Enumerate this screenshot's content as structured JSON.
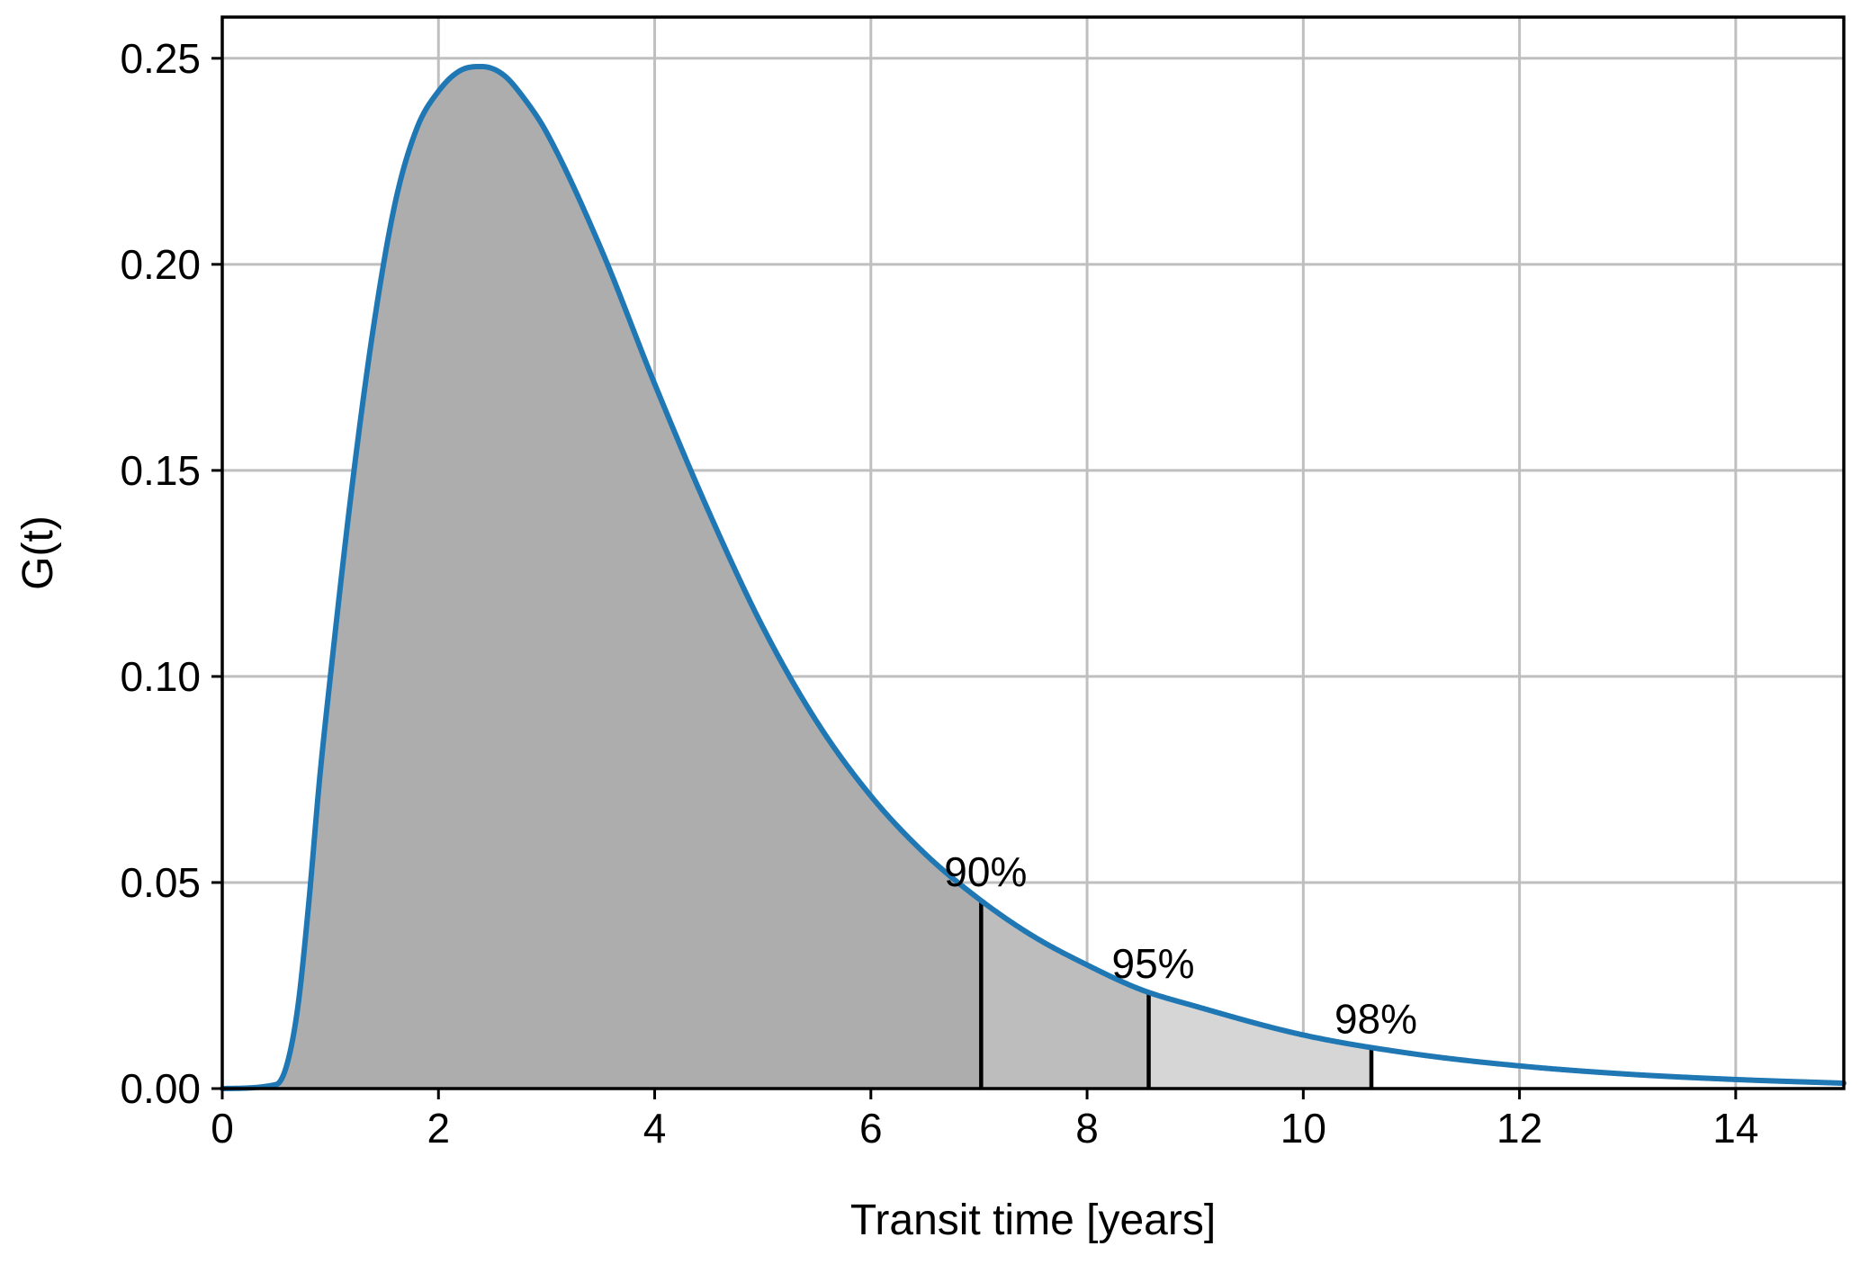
{
  "chart_data": {
    "type": "area",
    "xlabel": "Transit time [years]",
    "ylabel": "G(t)",
    "xlim": [
      0,
      15
    ],
    "ylim": [
      0,
      0.26
    ],
    "grid": true,
    "x_ticks": [
      0,
      2,
      4,
      6,
      8,
      10,
      12,
      14
    ],
    "x_tick_labels": [
      "0",
      "2",
      "4",
      "6",
      "8",
      "10",
      "12",
      "14"
    ],
    "y_ticks": [
      0,
      0.05,
      0.1,
      0.15,
      0.2,
      0.25
    ],
    "y_tick_labels": [
      "0.00",
      "0.05",
      "0.10",
      "0.15",
      "0.20",
      "0.25"
    ],
    "series": [
      {
        "color": "#1f77b4",
        "x": [
          0,
          0.5,
          0.6,
          0.7,
          0.8,
          0.9,
          1.0,
          1.2,
          1.4,
          1.6,
          1.8,
          2.0,
          2.2,
          2.4,
          2.6,
          2.8,
          3.0,
          3.5,
          4.0,
          4.5,
          5.0,
          5.5,
          6.0,
          6.5,
          7.0,
          7.5,
          8.0,
          8.5,
          9.0,
          10.0,
          11.0,
          12.0,
          13.0,
          14.0,
          15.0
        ],
        "y": [
          0,
          0.001,
          0.006,
          0.02,
          0.045,
          0.075,
          0.1,
          0.146,
          0.185,
          0.215,
          0.233,
          0.242,
          0.247,
          0.248,
          0.246,
          0.24,
          0.232,
          0.204,
          0.171,
          0.14,
          0.112,
          0.089,
          0.071,
          0.057,
          0.046,
          0.037,
          0.03,
          0.024,
          0.02,
          0.013,
          0.0085,
          0.0055,
          0.0035,
          0.0022,
          0.0013
        ]
      }
    ],
    "shaded_regions": [
      {
        "from": 0,
        "to": 7.02,
        "color": "#adadad"
      },
      {
        "from": 7.02,
        "to": 8.57,
        "color": "#bdbdbd"
      },
      {
        "from": 8.57,
        "to": 10.63,
        "color": "#d6d6d6"
      }
    ],
    "markers": [
      {
        "label": "90%",
        "x": 7.02
      },
      {
        "label": "95%",
        "x": 8.57
      },
      {
        "label": "98%",
        "x": 10.63
      }
    ]
  }
}
